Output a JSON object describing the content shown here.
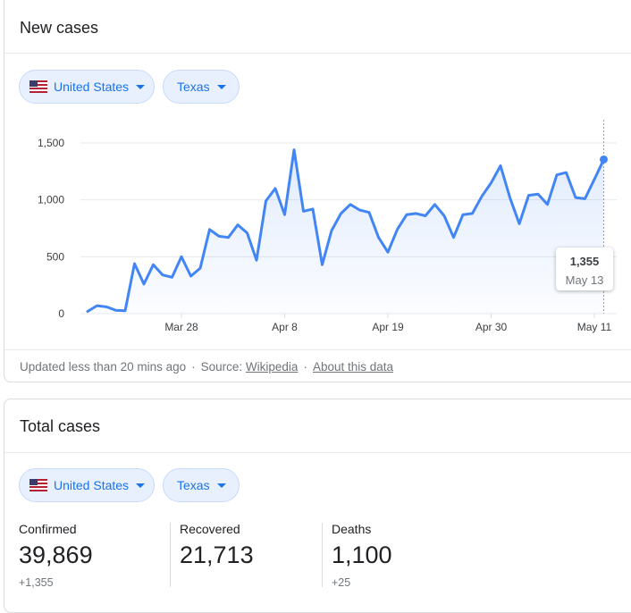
{
  "new_cases": {
    "title": "New cases",
    "country_chip": "United States",
    "state_chip": "Texas",
    "footer": {
      "updated": "Updated less than 20 mins ago",
      "sep1": "·",
      "source_label": "Source:",
      "source_link": "Wikipedia",
      "sep2": "·",
      "about_link": "About this data"
    },
    "tooltip": {
      "value": "1,355",
      "date": "May 13"
    }
  },
  "total_cases": {
    "title": "Total cases",
    "country_chip": "United States",
    "state_chip": "Texas",
    "stats": [
      {
        "label": "Confirmed",
        "value": "39,869",
        "delta": "+1,355"
      },
      {
        "label": "Recovered",
        "value": "21,713",
        "delta": ""
      },
      {
        "label": "Deaths",
        "value": "1,100",
        "delta": "+25"
      }
    ]
  },
  "colors": {
    "line": "#4285f4",
    "chip_text": "#1a73e8",
    "chip_bg": "#e8f0fe"
  },
  "chart_data": {
    "type": "area",
    "title": "New cases",
    "x_ticks": [
      "Mar 28",
      "Apr 8",
      "Apr 19",
      "Apr 30",
      "May 11"
    ],
    "y_ticks": [
      "0",
      "500",
      "1,000",
      "1,500"
    ],
    "ylim": [
      0,
      1600
    ],
    "x_start": "Mar 18",
    "values": [
      20,
      70,
      60,
      30,
      25,
      440,
      260,
      430,
      340,
      320,
      500,
      330,
      400,
      740,
      680,
      670,
      780,
      710,
      470,
      990,
      1100,
      870,
      1440,
      900,
      920,
      430,
      730,
      880,
      960,
      910,
      890,
      670,
      540,
      740,
      870,
      880,
      860,
      960,
      860,
      670,
      870,
      880,
      1030,
      1150,
      1300,
      1020,
      790,
      1040,
      1050,
      960,
      1220,
      1240,
      1020,
      1010,
      1180,
      1355
    ],
    "grid": true
  }
}
